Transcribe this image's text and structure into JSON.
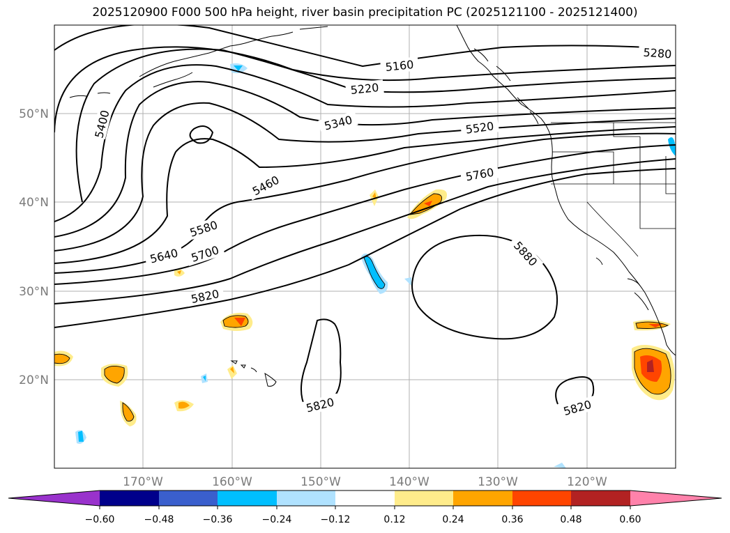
{
  "title": "2025120900 F000 500 hPa height, river basin precipitation PC (2025121100 - 2025121400)",
  "lat_labels": [
    "50°N",
    "40°N",
    "30°N",
    "20°N"
  ],
  "lon_labels": [
    "170°W",
    "160°W",
    "150°W",
    "140°W",
    "130°W",
    "120°W"
  ],
  "contour_labels": [
    "5160",
    "5220",
    "5280",
    "5340",
    "5400",
    "5460",
    "5520",
    "5580",
    "5640",
    "5700",
    "5760",
    "5820",
    "5880",
    "5820",
    "5820"
  ],
  "colorbar": {
    "ticks": [
      "−0.60",
      "−0.48",
      "−0.36",
      "−0.24",
      "−0.12",
      "0.12",
      "0.24",
      "0.36",
      "0.48",
      "0.60"
    ],
    "colors": [
      "#9932cc",
      "#00008b",
      "#3a5fcd",
      "#00bfff",
      "#b0e2ff",
      "#ffffff",
      "#ffec8b",
      "#ffa500",
      "#ff4500",
      "#b22222",
      "#ff82ab"
    ]
  }
}
